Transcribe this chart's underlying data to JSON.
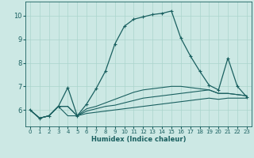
{
  "xlabel": "Humidex (Indice chaleur)",
  "ylabel": "",
  "bg_color": "#cce8e4",
  "grid_color": "#aad4cc",
  "line_color": "#1a6060",
  "xlim": [
    -0.5,
    23.5
  ],
  "ylim": [
    5.3,
    10.6
  ],
  "xticks": [
    0,
    1,
    2,
    3,
    4,
    5,
    6,
    7,
    8,
    9,
    10,
    11,
    12,
    13,
    14,
    15,
    16,
    17,
    18,
    19,
    20,
    21,
    22,
    23
  ],
  "yticks": [
    6,
    7,
    8,
    9,
    10
  ],
  "series": [
    {
      "x": [
        0,
        1,
        2,
        3,
        4,
        5,
        6,
        7,
        8,
        9,
        10,
        11,
        12,
        13,
        14,
        15,
        16,
        17,
        18,
        19,
        20,
        21,
        22,
        23
      ],
      "y": [
        6.0,
        5.65,
        5.75,
        6.15,
        5.75,
        5.75,
        5.85,
        5.9,
        5.95,
        6.0,
        6.05,
        6.1,
        6.15,
        6.2,
        6.25,
        6.3,
        6.35,
        6.4,
        6.45,
        6.5,
        6.45,
        6.5,
        6.5,
        6.5
      ],
      "marker": false,
      "linewidth": 0.8
    },
    {
      "x": [
        0,
        1,
        2,
        3,
        4,
        5,
        6,
        7,
        8,
        9,
        10,
        11,
        12,
        13,
        14,
        15,
        16,
        17,
        18,
        19,
        20,
        21,
        22,
        23
      ],
      "y": [
        6.0,
        5.65,
        5.75,
        6.15,
        6.15,
        5.75,
        5.95,
        6.05,
        6.15,
        6.2,
        6.3,
        6.4,
        6.5,
        6.55,
        6.6,
        6.65,
        6.7,
        6.75,
        6.8,
        6.85,
        6.7,
        6.7,
        6.65,
        6.6
      ],
      "marker": false,
      "linewidth": 0.8
    },
    {
      "x": [
        0,
        1,
        2,
        3,
        4,
        5,
        6,
        7,
        8,
        9,
        10,
        11,
        12,
        13,
        14,
        15,
        16,
        17,
        18,
        19,
        20,
        21,
        22,
        23
      ],
      "y": [
        6.0,
        5.65,
        5.75,
        6.15,
        6.15,
        5.75,
        6.05,
        6.15,
        6.3,
        6.45,
        6.6,
        6.75,
        6.85,
        6.9,
        6.95,
        7.0,
        7.0,
        6.95,
        6.9,
        6.85,
        6.7,
        6.7,
        6.65,
        6.6
      ],
      "marker": false,
      "linewidth": 0.8
    },
    {
      "x": [
        0,
        1,
        2,
        3,
        4,
        5,
        6,
        7,
        8,
        9,
        10,
        11,
        12,
        13,
        14,
        15,
        16,
        17,
        18,
        19,
        20,
        21,
        22,
        23
      ],
      "y": [
        6.0,
        5.65,
        5.75,
        6.15,
        6.95,
        5.75,
        6.25,
        6.9,
        7.65,
        8.8,
        9.55,
        9.85,
        9.95,
        10.05,
        10.1,
        10.2,
        9.05,
        8.3,
        7.65,
        7.05,
        6.85,
        8.2,
        7.0,
        6.55
      ],
      "marker": true,
      "linewidth": 0.9
    }
  ]
}
